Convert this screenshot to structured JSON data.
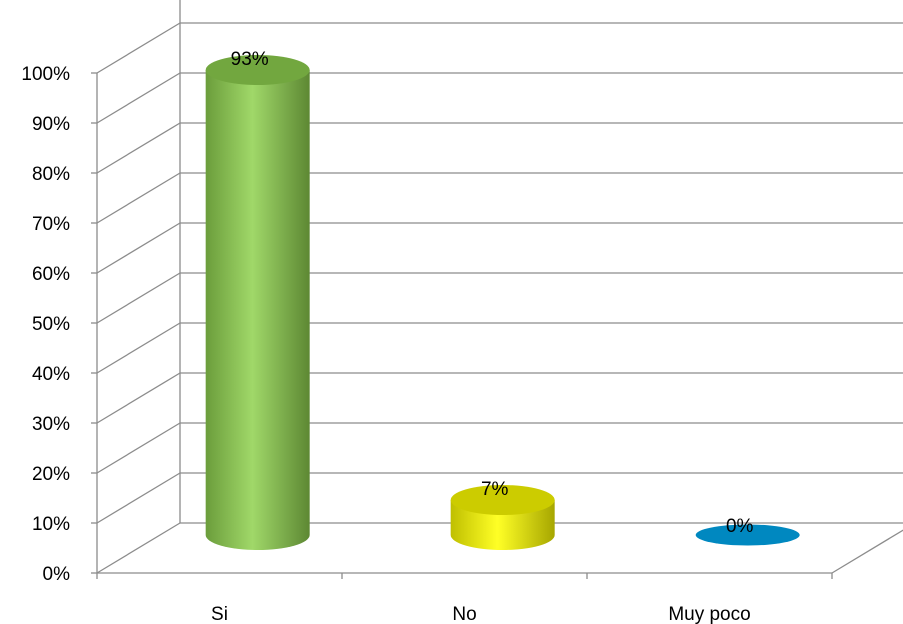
{
  "chart_data": {
    "type": "bar",
    "style": "3d-cylinder",
    "categories": [
      "Si",
      "No",
      "Muy poco"
    ],
    "values": [
      93,
      7,
      0
    ],
    "data_labels": [
      "93%",
      "7%",
      "0%"
    ],
    "colors": [
      "#8fd14f",
      "#ffff00",
      "#0088c0"
    ],
    "ylim": [
      0,
      100
    ],
    "y_ticks": [
      "0%",
      "10%",
      "20%",
      "30%",
      "40%",
      "50%",
      "60%",
      "70%",
      "80%",
      "90%",
      "100%"
    ],
    "grid": true,
    "legend": "none",
    "title": "",
    "xlabel": "",
    "ylabel": ""
  }
}
